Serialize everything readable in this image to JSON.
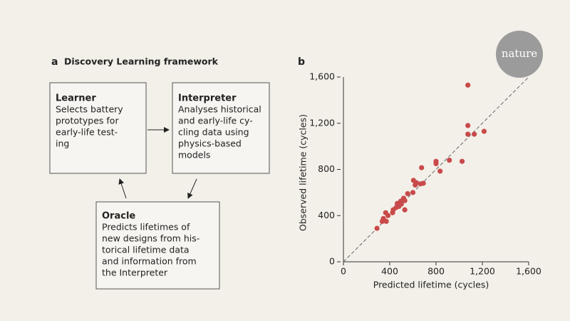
{
  "panel_a": {
    "label": "a",
    "title": "Discovery Learning framework",
    "nodes": [
      {
        "title": "Learner",
        "lines": [
          "Selects battery",
          "prototypes for",
          "early-life test-",
          "ing"
        ]
      },
      {
        "title": "Interpreter",
        "lines": [
          "Analyses historical",
          "and early-life cy-",
          "cling data using",
          "physics-based",
          "models"
        ]
      },
      {
        "title": "Oracle",
        "lines": [
          "Predicts lifetimes of",
          "new designs from his-",
          "torical lifetime data",
          "and information from",
          "the Interpreter"
        ]
      }
    ]
  },
  "logo": "nature",
  "chart_data": {
    "type": "scatter",
    "panel_label": "b",
    "x_label": "Predicted lifetime (cycles)",
    "y_label": "Observed lifetime (cycles)",
    "color": "#c94a4a",
    "x": [
      1075,
      1075,
      1075,
      1130,
      1215,
      1025,
      915,
      800,
      800,
      835,
      675,
      605,
      630,
      620,
      665,
      690,
      600,
      555,
      495,
      500,
      465,
      520,
      530,
      480,
      455,
      430,
      530,
      425,
      365,
      385,
      345,
      335,
      290,
      370
    ],
    "values": [
      1530,
      1180,
      1105,
      1105,
      1130,
      870,
      880,
      850,
      870,
      785,
      815,
      705,
      685,
      665,
      675,
      680,
      600,
      590,
      525,
      500,
      505,
      550,
      530,
      480,
      470,
      450,
      450,
      425,
      425,
      400,
      375,
      350,
      290,
      350
    ],
    "xlim": [
      0,
      1600
    ],
    "ylim": [
      0,
      1600
    ],
    "xticks": [
      0,
      400,
      800,
      {
        "value": 1200,
        "label": "1,200"
      },
      {
        "value": 1600,
        "label": "1,600"
      }
    ],
    "yticks": [
      0,
      400,
      800,
      {
        "value": 1200,
        "label": "1,200"
      },
      {
        "value": 1600,
        "label": "1,600"
      }
    ]
  }
}
